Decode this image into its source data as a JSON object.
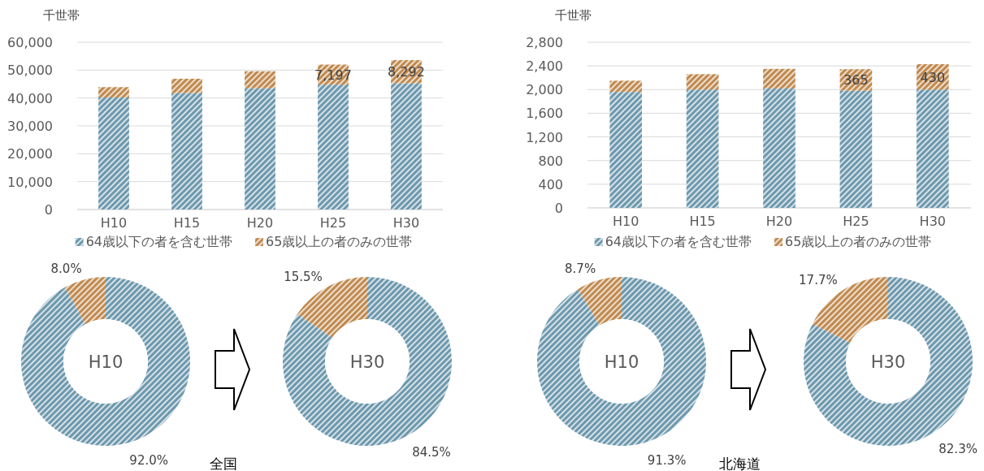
{
  "chart_data": [
    {
      "type": "bar",
      "stacked": true,
      "ylabel": "千世帯",
      "categories": [
        "H10",
        "H15",
        "H20",
        "H25",
        "H30"
      ],
      "series": [
        {
          "name": "64歳以下の者を含む世帯",
          "color": "#6d98ad",
          "values": [
            40200,
            41800,
            43500,
            44800,
            45300
          ]
        },
        {
          "name": "65歳以上の者のみの世帯",
          "color": "#c08a4f",
          "values": [
            3700,
            5100,
            6100,
            7197,
            8292
          ],
          "value_labels": [
            null,
            null,
            null,
            "7,197",
            "8,292"
          ]
        }
      ],
      "ylim": [
        0,
        60000
      ],
      "yticks": [
        0,
        {
          "value": 10000,
          "label": "10,000"
        },
        {
          "value": 20000,
          "label": "20,000"
        },
        {
          "value": 30000,
          "label": "30,000"
        },
        {
          "value": 40000,
          "label": "40,000"
        },
        {
          "value": 50000,
          "label": "50,000"
        },
        {
          "value": 60000,
          "label": "60,000"
        }
      ],
      "grid": "y",
      "legend": "bottom"
    },
    {
      "type": "bar",
      "stacked": true,
      "ylabel": "千世帯",
      "categories": [
        "H10",
        "H15",
        "H20",
        "H25",
        "H30"
      ],
      "series": [
        {
          "name": "64歳以下の者を含む世帯",
          "color": "#6d98ad",
          "values": [
            1960,
            2000,
            2020,
            1980,
            2000
          ]
        },
        {
          "name": "65歳以上の者のみの世帯",
          "color": "#c08a4f",
          "values": [
            190,
            260,
            330,
            365,
            430
          ],
          "value_labels": [
            null,
            null,
            null,
            "365",
            "430"
          ]
        }
      ],
      "ylim": [
        0,
        2800
      ],
      "yticks": [
        0,
        400,
        800,
        {
          "value": 1200,
          "label": "1,200"
        },
        {
          "value": 1600,
          "label": "1,600"
        },
        {
          "value": 2000,
          "label": "2,000"
        },
        {
          "value": 2400,
          "label": "2,400"
        },
        {
          "value": 2800,
          "label": "2,800"
        }
      ],
      "grid": "y",
      "legend": "bottom"
    },
    {
      "type": "donut",
      "title": "H10",
      "categories": [
        null,
        null
      ],
      "values": [
        92.0,
        8.0
      ],
      "colors": [
        "#6d98ad",
        "#c08a4f"
      ],
      "value_labels": [
        "92.0%",
        "8.0%"
      ],
      "annotations": [
        "全国"
      ]
    },
    {
      "type": "donut",
      "title": "H30",
      "categories": [
        null,
        null
      ],
      "values": [
        84.5,
        15.5
      ],
      "colors": [
        "#6d98ad",
        "#c08a4f"
      ],
      "value_labels": [
        "84.5%",
        "15.5%"
      ]
    },
    {
      "type": "donut",
      "title": "H10",
      "categories": [
        null,
        null
      ],
      "values": [
        91.3,
        8.7
      ],
      "colors": [
        "#6d98ad",
        "#c08a4f"
      ],
      "value_labels": [
        "91.3%",
        "8.7%"
      ],
      "annotations": [
        "北海道"
      ]
    },
    {
      "type": "donut",
      "title": "H30",
      "categories": [
        null,
        null
      ],
      "values": [
        82.3,
        17.7
      ],
      "colors": [
        "#6d98ad",
        "#c08a4f"
      ],
      "value_labels": [
        "82.3%",
        "17.7%"
      ]
    }
  ]
}
